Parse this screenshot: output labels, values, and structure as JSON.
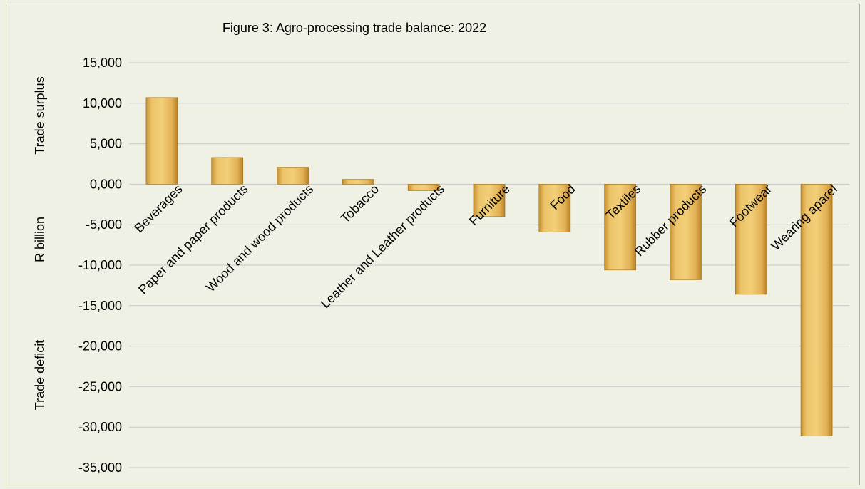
{
  "chart_data": {
    "type": "bar",
    "title": "Figure 3: Agro-processing trade balance: 2022",
    "categories": [
      "Beverages",
      "Paper and paper products",
      "Wood and wood products",
      "Tobacco",
      "Leather and Leather products",
      "Furniture",
      "Food",
      "Textiles",
      "Rubber products",
      "Footwear",
      "Wearing aparel"
    ],
    "values": [
      10700,
      3300,
      2100,
      600,
      -800,
      -4000,
      -5900,
      -10600,
      -11800,
      -13600,
      -31100
    ],
    "ylim": [
      -35000,
      15000
    ],
    "yticks": [
      15000,
      10000,
      5000,
      0,
      -5000,
      -10000,
      -15000,
      -20000,
      -25000,
      -30000,
      -35000
    ],
    "ytick_labels": [
      "15,000",
      "10,000",
      "5,000",
      "0,000",
      "-5,000",
      "-10,000",
      "-15,000",
      "-20,000",
      "-25,000",
      "-30,000",
      "-35,000"
    ],
    "ylabel_parts": [
      "Trade surplus",
      "R billion",
      "Trade deficit"
    ],
    "grid": true,
    "bar_color": "#e5b55a"
  }
}
